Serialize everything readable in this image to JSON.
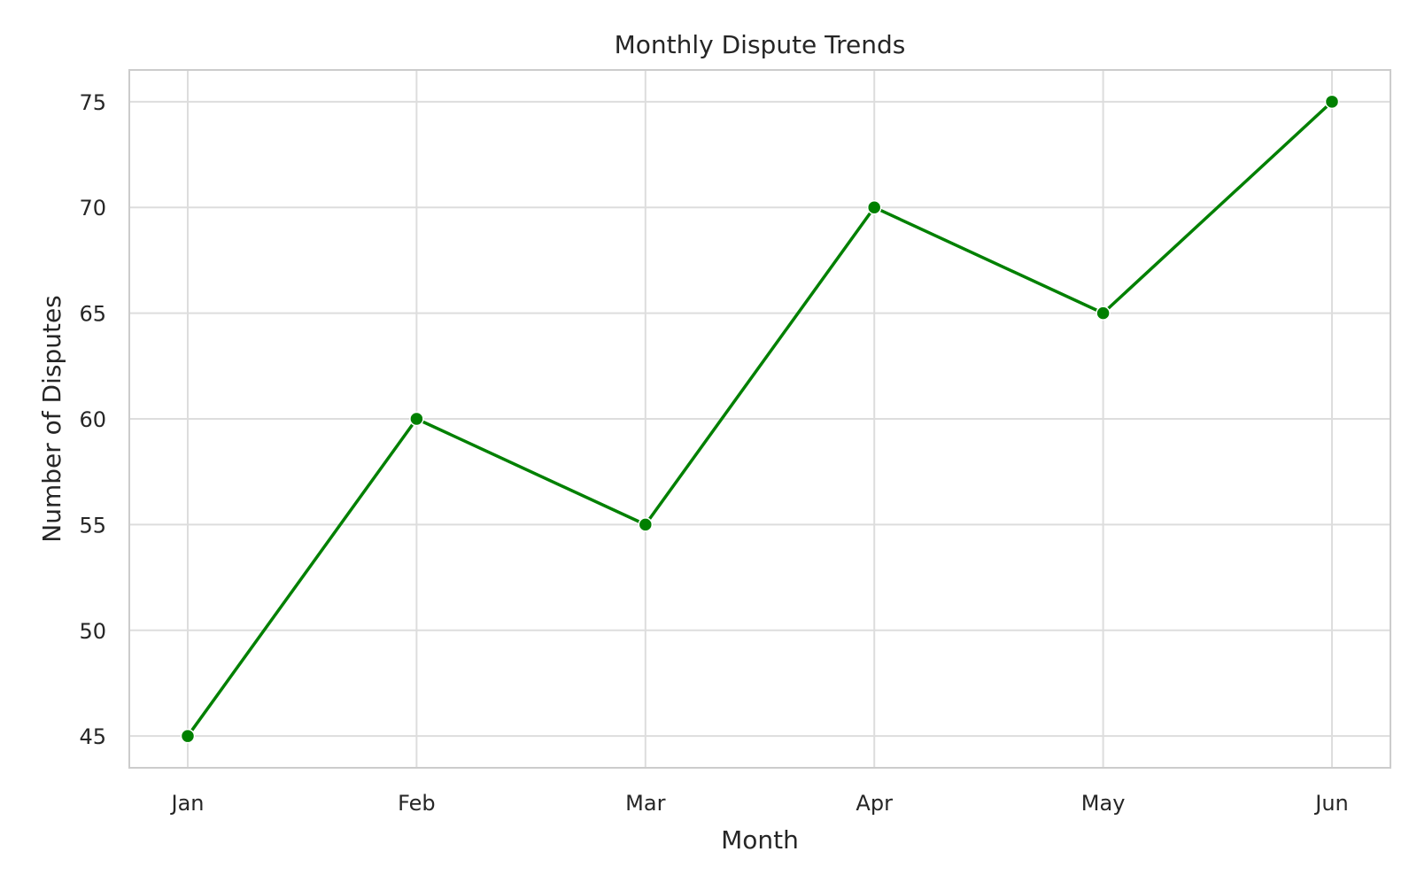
{
  "chart_data": {
    "type": "line",
    "title": "Monthly Dispute Trends",
    "xlabel": "Month",
    "ylabel": "Number of Disputes",
    "categories": [
      "Jan",
      "Feb",
      "Mar",
      "Apr",
      "May",
      "Jun"
    ],
    "series": [
      {
        "values": [
          45,
          60,
          55,
          70,
          65,
          75
        ],
        "color": "#008000",
        "marker": "circle"
      }
    ],
    "y_ticks": [
      45,
      50,
      55,
      60,
      65,
      70,
      75
    ],
    "ylim": [
      43.5,
      76.5
    ],
    "grid": true,
    "legend": "none"
  },
  "colors": {
    "line": "#008000",
    "grid": "#dddddd",
    "frame": "#cccccc",
    "text": "#262626"
  }
}
